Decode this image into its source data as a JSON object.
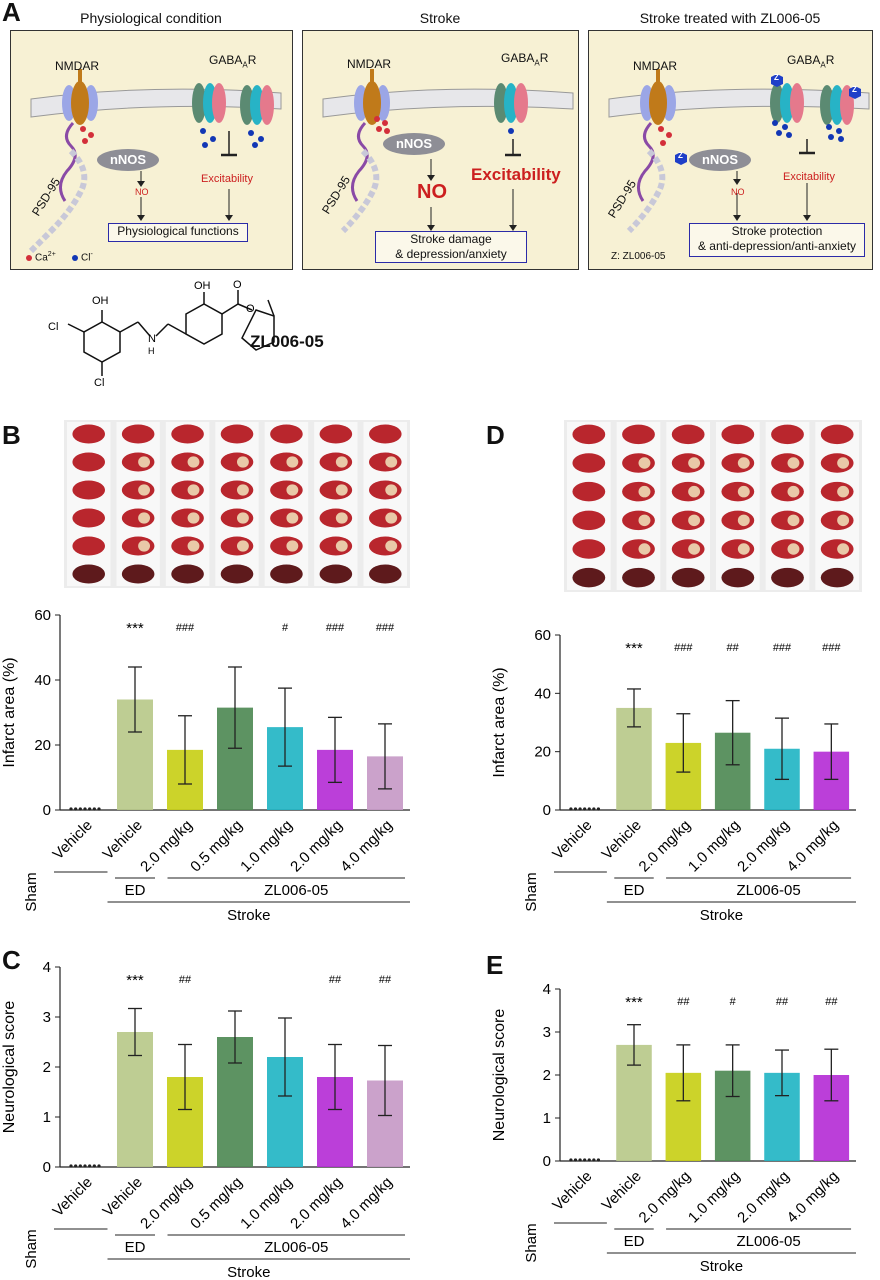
{
  "panel_letters": {
    "a": "A",
    "b": "B",
    "c": "C",
    "d": "D",
    "e": "E"
  },
  "schematic": {
    "titles": [
      "Physiological condition",
      "Stroke",
      "Stroke treated with ZL006-05"
    ],
    "labels": {
      "nmdar": "NMDAR",
      "gaba_prefix": "GABA",
      "gaba_sub": "A",
      "gaba_suffix": "R",
      "psd95": "PSD-95",
      "nnos": "nNOS",
      "no": "NO",
      "excitability": "Excitability",
      "z": "Z"
    },
    "outcomes": [
      "Physiological functions",
      "Stroke damage\n& depression/anxiety",
      "Stroke protection\n& anti-depression/anti-anxiety"
    ],
    "legend": {
      "ca": "Ca",
      "ca_sup": "2+",
      "cl": "Cl",
      "cl_sup": "-",
      "z_def": "Z: ZL006-05"
    },
    "colors": {
      "box_bg": "#f7f1d4",
      "membrane": "#e7e7ea",
      "nmdar_core": "#c07a1a",
      "nmdar_side": "#9ba6e6",
      "gaba_green": "#5b8a72",
      "gaba_pink": "#e5798c",
      "gaba_cyan": "#27b3c6",
      "psd": "#8a4aa6",
      "ca": "#d32f3a",
      "cl": "#1237b5",
      "z": "#1f3fc8"
    }
  },
  "compound": {
    "name": "ZL006-05",
    "atoms": {
      "oh": "OH",
      "cl": "Cl",
      "n": "N",
      "h": "H",
      "o": "O"
    }
  },
  "bottom_labels": {
    "sham": "Sham",
    "vehicle": "Vehicle",
    "ed": "ED",
    "zl": "ZL006-05",
    "stroke": "Stroke",
    "doses_b": [
      "2.0 mg/kg",
      "0.5 mg/kg",
      "1.0 mg/kg",
      "2.0 mg/kg",
      "4.0 mg/kg"
    ],
    "doses_d": [
      "2.0 mg/kg",
      "1.0 mg/kg",
      "2.0 mg/kg",
      "4.0 mg/kg"
    ]
  },
  "chart_data": [
    {
      "panel": "B",
      "type": "bar",
      "ylabel": "Infarct area (%)",
      "ylim": [
        0,
        60
      ],
      "yticks": [
        0,
        20,
        40,
        60
      ],
      "categories": [
        "Sham Vehicle",
        "Stroke Vehicle",
        "ED 2.0 mg/kg",
        "ZL006-05 0.5 mg/kg",
        "ZL006-05 1.0 mg/kg",
        "ZL006-05 2.0 mg/kg",
        "ZL006-05 4.0 mg/kg"
      ],
      "values": [
        0,
        34,
        18.5,
        31.5,
        25.5,
        18.5,
        16.5
      ],
      "errors": [
        0,
        10,
        10.5,
        12.5,
        12,
        10,
        10
      ],
      "significance": [
        "",
        "***",
        "###",
        "",
        "#",
        "###",
        "###"
      ],
      "colors": [
        "#ffffff",
        "#b8c98a",
        "#c8cf18",
        "#4f8a55",
        "#23b5c4",
        "#b52fd6",
        "#c79ac7"
      ]
    },
    {
      "panel": "D",
      "type": "bar",
      "ylabel": "Infarct area (%)",
      "ylim": [
        0,
        60
      ],
      "yticks": [
        0,
        20,
        40,
        60
      ],
      "categories": [
        "Sham Vehicle",
        "Stroke Vehicle",
        "ED 2.0 mg/kg",
        "ZL006-05 1.0 mg/kg",
        "ZL006-05 2.0 mg/kg",
        "ZL006-05 4.0 mg/kg"
      ],
      "values": [
        0,
        35,
        23,
        26.5,
        21,
        20
      ],
      "errors": [
        0,
        6.5,
        10,
        11,
        10.5,
        9.5
      ],
      "significance": [
        "",
        "***",
        "###",
        "##",
        "###",
        "###"
      ],
      "colors": [
        "#ffffff",
        "#b8c98a",
        "#c8cf18",
        "#4f8a55",
        "#23b5c4",
        "#b52fd6"
      ]
    },
    {
      "panel": "C",
      "type": "bar",
      "ylabel": "Neurological score",
      "ylim": [
        0,
        4
      ],
      "yticks": [
        0,
        1,
        2,
        3,
        4
      ],
      "categories": [
        "Sham Vehicle",
        "Stroke Vehicle",
        "ED 2.0 mg/kg",
        "ZL006-05 0.5 mg/kg",
        "ZL006-05 1.0 mg/kg",
        "ZL006-05 2.0 mg/kg",
        "ZL006-05 4.0 mg/kg"
      ],
      "values": [
        0,
        2.7,
        1.8,
        2.6,
        2.2,
        1.8,
        1.73
      ],
      "errors": [
        0,
        0.47,
        0.65,
        0.52,
        0.78,
        0.65,
        0.7
      ],
      "significance": [
        "",
        "***",
        "##",
        "",
        "",
        "##",
        "##"
      ],
      "colors": [
        "#ffffff",
        "#b8c98a",
        "#c8cf18",
        "#4f8a55",
        "#23b5c4",
        "#b52fd6",
        "#c79ac7"
      ]
    },
    {
      "panel": "E",
      "type": "bar",
      "ylabel": "Neurological score",
      "ylim": [
        0,
        4
      ],
      "yticks": [
        0,
        1,
        2,
        3,
        4
      ],
      "categories": [
        "Sham Vehicle",
        "Stroke Vehicle",
        "ED 2.0 mg/kg",
        "ZL006-05 1.0 mg/kg",
        "ZL006-05 2.0 mg/kg",
        "ZL006-05 4.0 mg/kg"
      ],
      "values": [
        0,
        2.7,
        2.05,
        2.1,
        2.05,
        2.0
      ],
      "errors": [
        0,
        0.47,
        0.65,
        0.6,
        0.53,
        0.6
      ],
      "significance": [
        "",
        "***",
        "##",
        "#",
        "##",
        "##"
      ],
      "colors": [
        "#ffffff",
        "#b8c98a",
        "#c8cf18",
        "#4f8a55",
        "#23b5c4",
        "#b52fd6"
      ]
    }
  ]
}
